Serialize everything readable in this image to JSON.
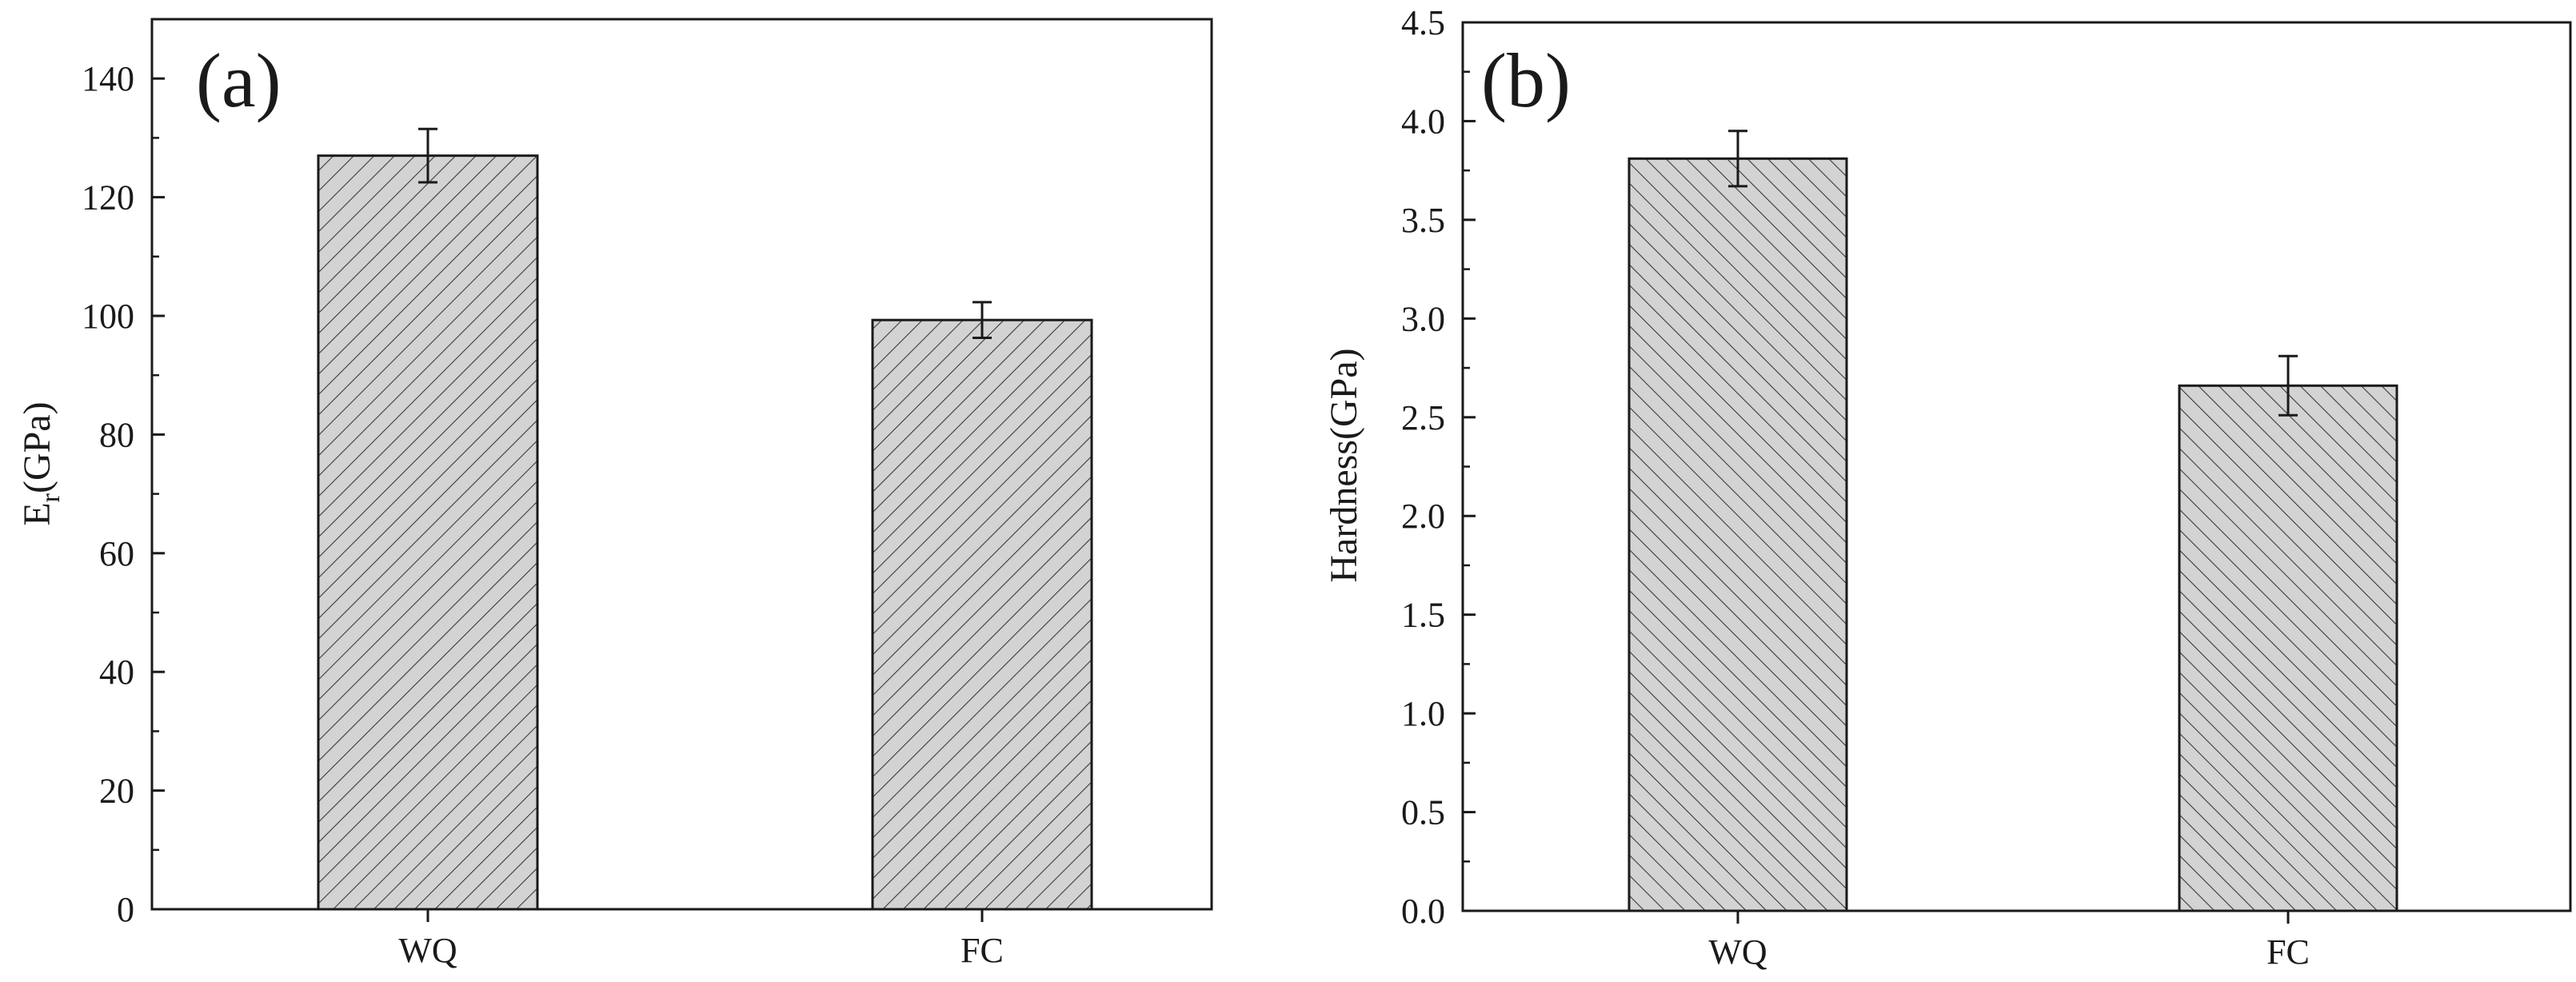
{
  "chart_data": [
    {
      "type": "bar",
      "panel_label": "(a)",
      "categories": [
        "WQ",
        "FC"
      ],
      "values": [
        127,
        99.3
      ],
      "errors": [
        4.5,
        3.0
      ],
      "ylabel_main": "E",
      "ylabel_sub": "r",
      "ylabel_rest": "(GPa)",
      "ylim": [
        0,
        150
      ],
      "yticks": [
        0,
        20,
        40,
        60,
        80,
        100,
        120,
        140
      ],
      "ytick_labels": [
        "0",
        "20",
        "40",
        "60",
        "80",
        "100",
        "120",
        "140"
      ],
      "minor_step": 10,
      "hatch": "forward"
    },
    {
      "type": "bar",
      "panel_label": "(b)",
      "categories": [
        "WQ",
        "FC"
      ],
      "values": [
        3.81,
        2.66
      ],
      "errors": [
        0.14,
        0.15
      ],
      "ylabel_main": "Hardness(GPa)",
      "ylabel_sub": "",
      "ylabel_rest": "",
      "ylim": [
        0,
        4.5
      ],
      "yticks": [
        0,
        0.5,
        1.0,
        1.5,
        2.0,
        2.5,
        3.0,
        3.5,
        4.0,
        4.5
      ],
      "ytick_labels": [
        "0.0",
        "0.5",
        "1.0",
        "1.5",
        "2.0",
        "2.5",
        "3.0",
        "3.5",
        "4.0",
        "4.5"
      ],
      "minor_step": 0.25,
      "hatch": "back"
    }
  ],
  "colors": {
    "bar_fill": "#d3d3d3",
    "hatch": "#3a3a3a",
    "axis": "#1a1a1a"
  }
}
